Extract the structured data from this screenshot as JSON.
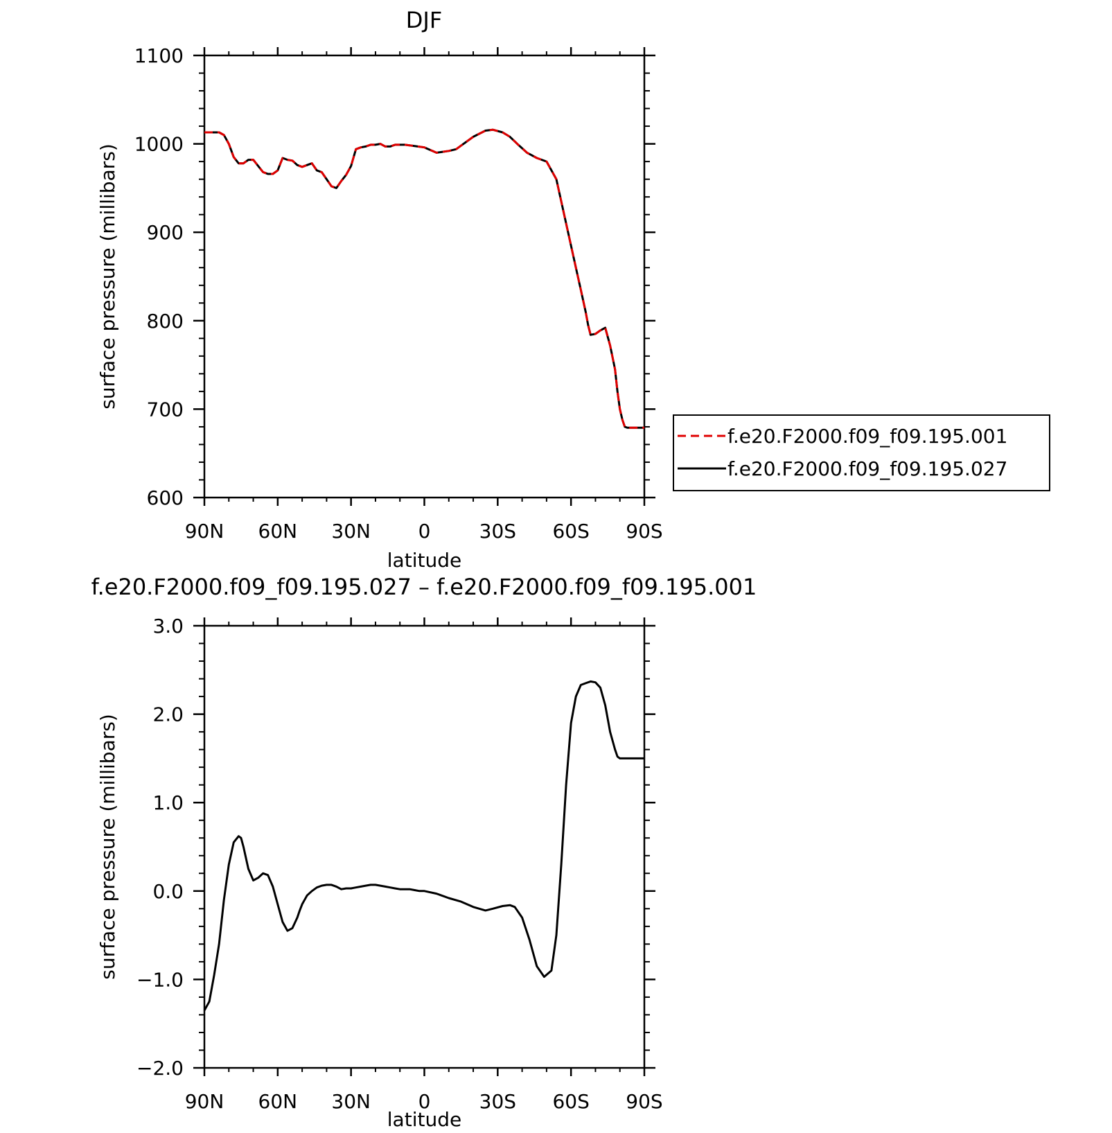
{
  "chart_data": [
    {
      "type": "line",
      "title": "DJF",
      "xlabel": "latitude",
      "ylabel": "surface pressure (millibars)",
      "xlim": [
        90,
        -90
      ],
      "ylim": [
        600,
        1100
      ],
      "x_ticks": [
        {
          "value": 90,
          "label": "90N"
        },
        {
          "value": 60,
          "label": "60N"
        },
        {
          "value": 30,
          "label": "30N"
        },
        {
          "value": 0,
          "label": "0"
        },
        {
          "value": -30,
          "label": "30S"
        },
        {
          "value": -60,
          "label": "60S"
        },
        {
          "value": -90,
          "label": "90S"
        }
      ],
      "y_ticks": [
        {
          "value": 600,
          "label": "600"
        },
        {
          "value": 700,
          "label": "700"
        },
        {
          "value": 800,
          "label": "800"
        },
        {
          "value": 900,
          "label": "900"
        },
        {
          "value": 1000,
          "label": "1000"
        },
        {
          "value": 1100,
          "label": "1100"
        }
      ],
      "legend_position": "right",
      "series": [
        {
          "name": "f.e20.F2000.f09_f09.195.001",
          "color": "#e00000",
          "dash": true,
          "x": [
            90,
            86,
            84,
            82,
            80,
            78,
            76,
            74,
            72,
            70,
            68,
            66,
            64,
            62,
            60,
            58,
            56,
            54,
            52,
            50,
            48,
            46,
            44,
            42,
            40,
            38,
            36,
            34,
            32,
            30,
            28,
            26,
            24,
            22,
            20,
            18,
            16,
            14,
            12,
            10,
            8,
            5,
            0,
            -5,
            -10,
            -13,
            -15,
            -20,
            -25,
            -28,
            -32,
            -35,
            -38,
            -42,
            -46,
            -50,
            -54,
            -58,
            -62,
            -64,
            -66,
            -67,
            -68,
            -70,
            -72,
            -74,
            -75,
            -76,
            -78,
            -79,
            -80,
            -81,
            -82,
            -83,
            -84,
            -85,
            -86,
            -87,
            -88,
            -89,
            -90
          ],
          "y": [
            1013,
            1013,
            1013,
            1010,
            1000,
            985,
            978,
            978,
            982,
            982,
            975,
            968,
            966,
            966,
            970,
            984,
            982,
            981,
            976,
            974,
            976,
            978,
            970,
            968,
            960,
            952,
            950,
            958,
            965,
            975,
            994,
            996,
            997,
            999,
            999,
            1000,
            997,
            997,
            999,
            999,
            999,
            998,
            996,
            990,
            992,
            994,
            998,
            1008,
            1015,
            1016,
            1013,
            1008,
            1000,
            990,
            984,
            980,
            960,
            910,
            860,
            835,
            810,
            795,
            784,
            785,
            789,
            792,
            782,
            772,
            745,
            720,
            700,
            688,
            680,
            679,
            679,
            679,
            679,
            679,
            679,
            679,
            679
          ]
        },
        {
          "name": "f.e20.F2000.f09_f09.195.027",
          "color": "#000000",
          "dash": false,
          "x": [
            90,
            86,
            84,
            82,
            80,
            78,
            76,
            74,
            72,
            70,
            68,
            66,
            64,
            62,
            60,
            58,
            56,
            54,
            52,
            50,
            48,
            46,
            44,
            42,
            40,
            38,
            36,
            34,
            32,
            30,
            28,
            26,
            24,
            22,
            20,
            18,
            16,
            14,
            12,
            10,
            8,
            5,
            0,
            -5,
            -10,
            -13,
            -15,
            -20,
            -25,
            -28,
            -32,
            -35,
            -38,
            -42,
            -46,
            -50,
            -54,
            -58,
            -62,
            -64,
            -66,
            -67,
            -68,
            -70,
            -72,
            -74,
            -75,
            -76,
            -78,
            -79,
            -80,
            -81,
            -82,
            -83,
            -84,
            -85,
            -86,
            -87,
            -88,
            -89,
            -90
          ],
          "y": [
            1013,
            1013,
            1013,
            1010,
            1000,
            985,
            978,
            978,
            982,
            982,
            975,
            968,
            966,
            966,
            970,
            984,
            982,
            981,
            976,
            974,
            976,
            978,
            970,
            968,
            960,
            952,
            950,
            958,
            965,
            975,
            994,
            996,
            997,
            999,
            999,
            1000,
            997,
            997,
            999,
            999,
            999,
            998,
            996,
            990,
            992,
            994,
            998,
            1008,
            1015,
            1016,
            1013,
            1008,
            1000,
            990,
            984,
            980,
            960,
            910,
            860,
            835,
            810,
            795,
            784,
            785,
            789,
            792,
            782,
            772,
            745,
            720,
            700,
            688,
            680,
            679,
            679,
            679,
            679,
            679,
            679,
            679,
            679
          ]
        }
      ]
    },
    {
      "type": "line",
      "title": "f.e20.F2000.f09_f09.195.027 – f.e20.F2000.f09_f09.195.001",
      "xlabel": "latitude",
      "ylabel": "surface pressure (millibars)",
      "xlim": [
        90,
        -90
      ],
      "ylim": [
        -2.0,
        3.0
      ],
      "x_ticks": [
        {
          "value": 90,
          "label": "90N"
        },
        {
          "value": 60,
          "label": "60N"
        },
        {
          "value": 30,
          "label": "30N"
        },
        {
          "value": 0,
          "label": "0"
        },
        {
          "value": -30,
          "label": "30S"
        },
        {
          "value": -60,
          "label": "60S"
        },
        {
          "value": -90,
          "label": "90S"
        }
      ],
      "y_ticks": [
        {
          "value": -2.0,
          "label": "−2.0"
        },
        {
          "value": -1.0,
          "label": "−1.0"
        },
        {
          "value": 0.0,
          "label": "0.0"
        },
        {
          "value": 1.0,
          "label": "1.0"
        },
        {
          "value": 2.0,
          "label": "2.0"
        },
        {
          "value": 3.0,
          "label": "3.0"
        }
      ],
      "series": [
        {
          "color": "#000000",
          "dash": false,
          "x": [
            90,
            88,
            86,
            84,
            82,
            80,
            78,
            76,
            75,
            74,
            72,
            70,
            68,
            66,
            64,
            62,
            60,
            58,
            56,
            54,
            52,
            51,
            50,
            48,
            46,
            44,
            42,
            40,
            38,
            36,
            34,
            32,
            30,
            28,
            26,
            24,
            22,
            20,
            18,
            16,
            14,
            12,
            10,
            8,
            6,
            4,
            2,
            0,
            -5,
            -10,
            -15,
            -20,
            -25,
            -28,
            -32,
            -35,
            -37,
            -40,
            -43,
            -46,
            -49,
            -52,
            -54,
            -56,
            -58,
            -60,
            -62,
            -64,
            -66,
            -68,
            -70,
            -72,
            -74,
            -76,
            -78,
            -79,
            -80,
            -81,
            -82,
            -83,
            -84,
            -86,
            -88,
            -90
          ],
          "y": [
            -1.35,
            -1.25,
            -0.95,
            -0.6,
            -0.1,
            0.3,
            0.55,
            0.62,
            0.6,
            0.5,
            0.25,
            0.12,
            0.15,
            0.2,
            0.18,
            0.05,
            -0.15,
            -0.35,
            -0.45,
            -0.42,
            -0.3,
            -0.22,
            -0.15,
            -0.05,
            0.0,
            0.04,
            0.06,
            0.07,
            0.07,
            0.05,
            0.02,
            0.03,
            0.03,
            0.04,
            0.05,
            0.06,
            0.07,
            0.07,
            0.06,
            0.05,
            0.04,
            0.03,
            0.02,
            0.02,
            0.02,
            0.01,
            0.0,
            0.0,
            -0.03,
            -0.08,
            -0.12,
            -0.18,
            -0.22,
            -0.2,
            -0.17,
            -0.16,
            -0.18,
            -0.3,
            -0.55,
            -0.85,
            -0.97,
            -0.9,
            -0.5,
            0.3,
            1.2,
            1.9,
            2.2,
            2.33,
            2.35,
            2.37,
            2.36,
            2.3,
            2.1,
            1.8,
            1.6,
            1.52,
            1.5,
            1.5,
            1.5,
            1.5,
            1.5,
            1.5,
            1.5,
            1.5
          ]
        }
      ]
    }
  ]
}
